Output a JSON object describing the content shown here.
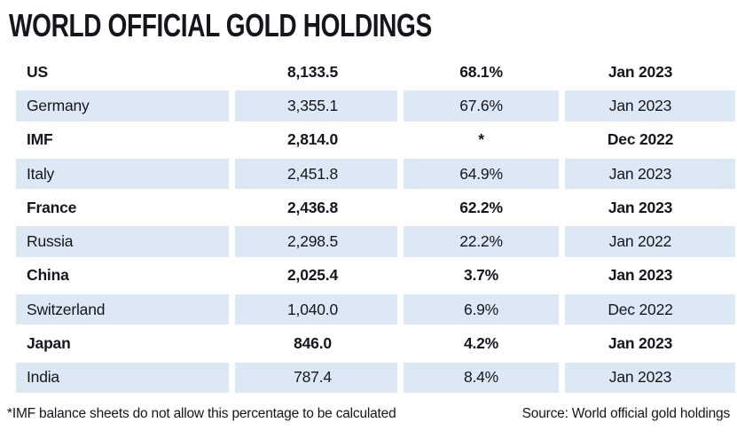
{
  "title": "WORLD OFFICIAL GOLD HOLDINGS",
  "footnote": "*IMF balance sheets do not allow this percentage to be calculated",
  "source": "Source: World official gold holdings",
  "colors": {
    "row_shade": "#dce8f4",
    "text": "#15151c",
    "background": "#ffffff"
  },
  "chart_data": {
    "type": "table",
    "title": "WORLD OFFICIAL GOLD HOLDINGS",
    "columns": [
      "holder",
      "tonnes",
      "percent_of_reserves",
      "as_of"
    ],
    "rows": [
      {
        "name": "US",
        "holdings": "8,133.5",
        "percent": "68.1%",
        "date": "Jan 2023",
        "bold": true,
        "shaded": false
      },
      {
        "name": "Germany",
        "holdings": "3,355.1",
        "percent": "67.6%",
        "date": "Jan 2023",
        "bold": false,
        "shaded": true
      },
      {
        "name": "IMF",
        "holdings": "2,814.0",
        "percent": "*",
        "date": "Dec 2022",
        "bold": true,
        "shaded": false
      },
      {
        "name": "Italy",
        "holdings": "2,451.8",
        "percent": "64.9%",
        "date": "Jan 2023",
        "bold": false,
        "shaded": true
      },
      {
        "name": "France",
        "holdings": "2,436.8",
        "percent": "62.2%",
        "date": "Jan 2023",
        "bold": true,
        "shaded": false
      },
      {
        "name": "Russia",
        "holdings": "2,298.5",
        "percent": "22.2%",
        "date": "Jan 2022",
        "bold": false,
        "shaded": true
      },
      {
        "name": "China",
        "holdings": "2,025.4",
        "percent": "3.7%",
        "date": "Jan 2023",
        "bold": true,
        "shaded": false
      },
      {
        "name": "Switzerland",
        "holdings": "1,040.0",
        "percent": "6.9%",
        "date": "Dec 2022",
        "bold": false,
        "shaded": true
      },
      {
        "name": "Japan",
        "holdings": "846.0",
        "percent": "4.2%",
        "date": "Jan 2023",
        "bold": true,
        "shaded": false
      },
      {
        "name": "India",
        "holdings": "787.4",
        "percent": "8.4%",
        "date": "Jan 2023",
        "bold": false,
        "shaded": true
      }
    ],
    "footnote": "*IMF balance sheets do not allow this percentage to be calculated",
    "source": "Source: World official gold holdings"
  }
}
